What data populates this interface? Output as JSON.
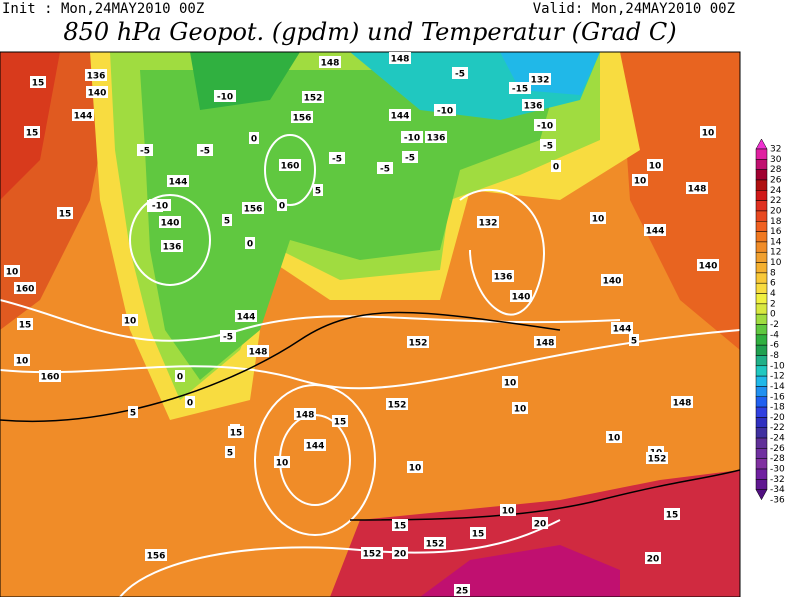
{
  "header": {
    "init": "Init : Mon,24MAY2010 00Z",
    "valid": "Valid: Mon,24MAY2010 00Z",
    "title": "850 hPa Geopot. (gpdm) und Temperatur (Grad C)"
  },
  "colorbar": {
    "labels": [
      32,
      30,
      28,
      26,
      24,
      22,
      20,
      18,
      16,
      14,
      12,
      10,
      8,
      6,
      4,
      2,
      0,
      -2,
      -4,
      -6,
      -8,
      -10,
      -12,
      -14,
      -16,
      -18,
      -20,
      -22,
      -24,
      -26,
      -28,
      -30,
      -32,
      -34,
      -36
    ],
    "colors": [
      "#f030d0",
      "#e020a0",
      "#c01070",
      "#a00030",
      "#b01010",
      "#d01818",
      "#e03020",
      "#e84820",
      "#f06020",
      "#f07820",
      "#f08c28",
      "#f0a030",
      "#f4b030",
      "#f8c838",
      "#f8dc40",
      "#f0f040",
      "#d8e840",
      "#a0dc40",
      "#60c840",
      "#30b040",
      "#20a050",
      "#20b088",
      "#20c8c0",
      "#20b8e8",
      "#2090f0",
      "#2060f0",
      "#3040e0",
      "#3030c0",
      "#4030a0",
      "#603098",
      "#7030a0",
      "#8030a0",
      "#7020a0",
      "#601890",
      "#501080"
    ]
  },
  "map": {
    "contour_labels": [
      15,
      136,
      140,
      144,
      15,
      144,
      10,
      140,
      136,
      15,
      10,
      160,
      10,
      15,
      10,
      160,
      5,
      144,
      148,
      -5,
      0,
      0,
      5,
      5,
      148,
      15,
      144,
      10,
      152,
      152,
      148,
      144,
      10,
      10,
      10,
      10,
      152,
      148,
      10,
      15,
      152,
      20,
      152,
      15,
      10,
      20,
      15,
      20,
      25,
      156,
      10,
      10,
      148,
      10,
      10,
      144,
      140,
      140,
      140,
      136,
      132,
      5,
      160,
      156,
      152,
      148,
      148,
      132,
      136,
      144,
      136,
      -10,
      -5,
      -10,
      -15,
      -5,
      0,
      -5,
      -10,
      -5,
      -10,
      -5,
      -5,
      -10,
      0,
      0,
      156,
      5,
      -5,
      5,
      15,
      0
    ]
  }
}
